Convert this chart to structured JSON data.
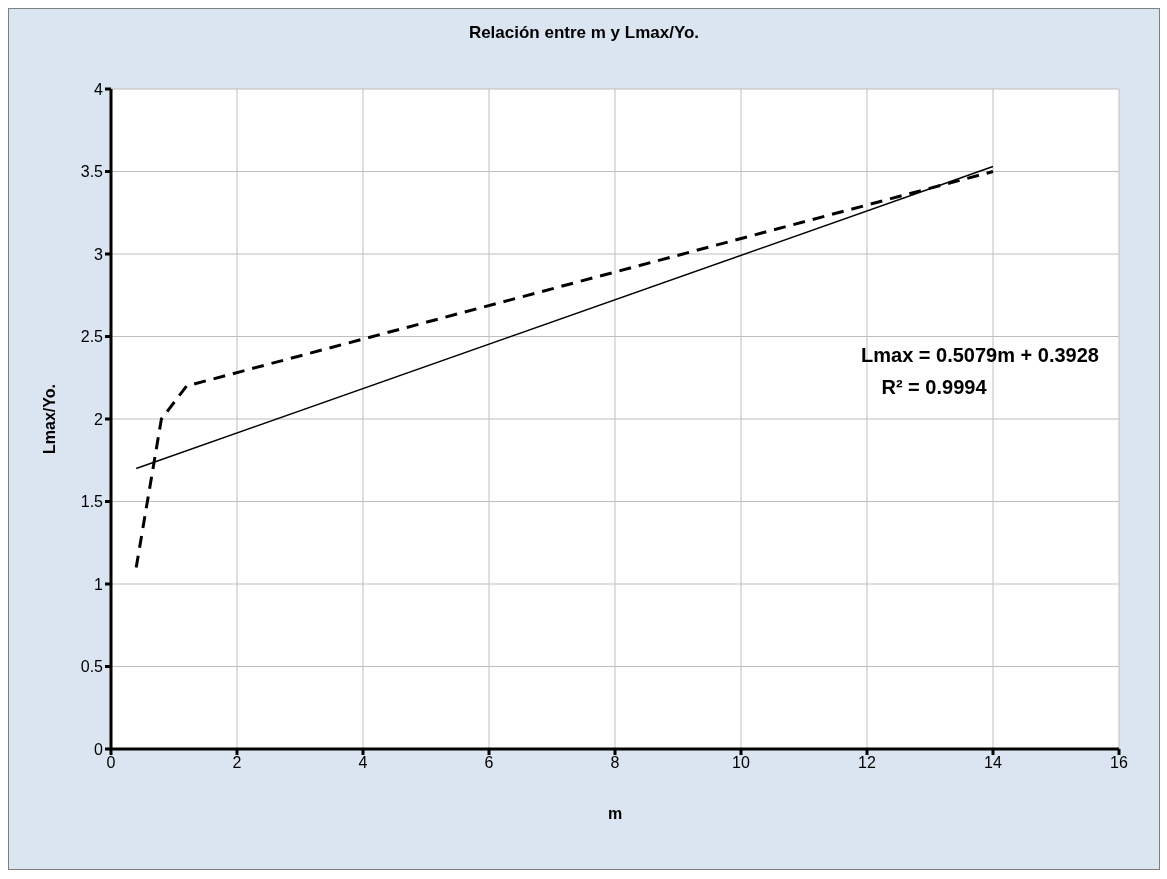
{
  "chart_data": {
    "type": "line",
    "title": "Relación entre m y Lmax/Yo.",
    "xlabel": "m",
    "ylabel": "Lmax/Yo.",
    "series": [
      {
        "color": "#000000",
        "line_style": "dashed",
        "x": [
          0.4,
          0.8,
          1.2,
          14
        ],
        "values": [
          1.1,
          2.0,
          2.2,
          3.5
        ]
      },
      {
        "color": "#000000",
        "line_style": "solid",
        "x": [
          0.4,
          14
        ],
        "values": [
          1.7,
          3.53
        ]
      }
    ],
    "xlim": [
      0,
      16
    ],
    "xticks": [
      0,
      2,
      4,
      6,
      8,
      10,
      12,
      14,
      16
    ],
    "ylim": [
      0,
      4
    ],
    "yticks": [
      0,
      0.5,
      1,
      1.5,
      2,
      2.5,
      3,
      3.5,
      4
    ],
    "grid": true,
    "marker": "none",
    "annotations": [
      "Lmax = 0.5079m + 0.3928",
      "R² = 0.9994"
    ]
  }
}
